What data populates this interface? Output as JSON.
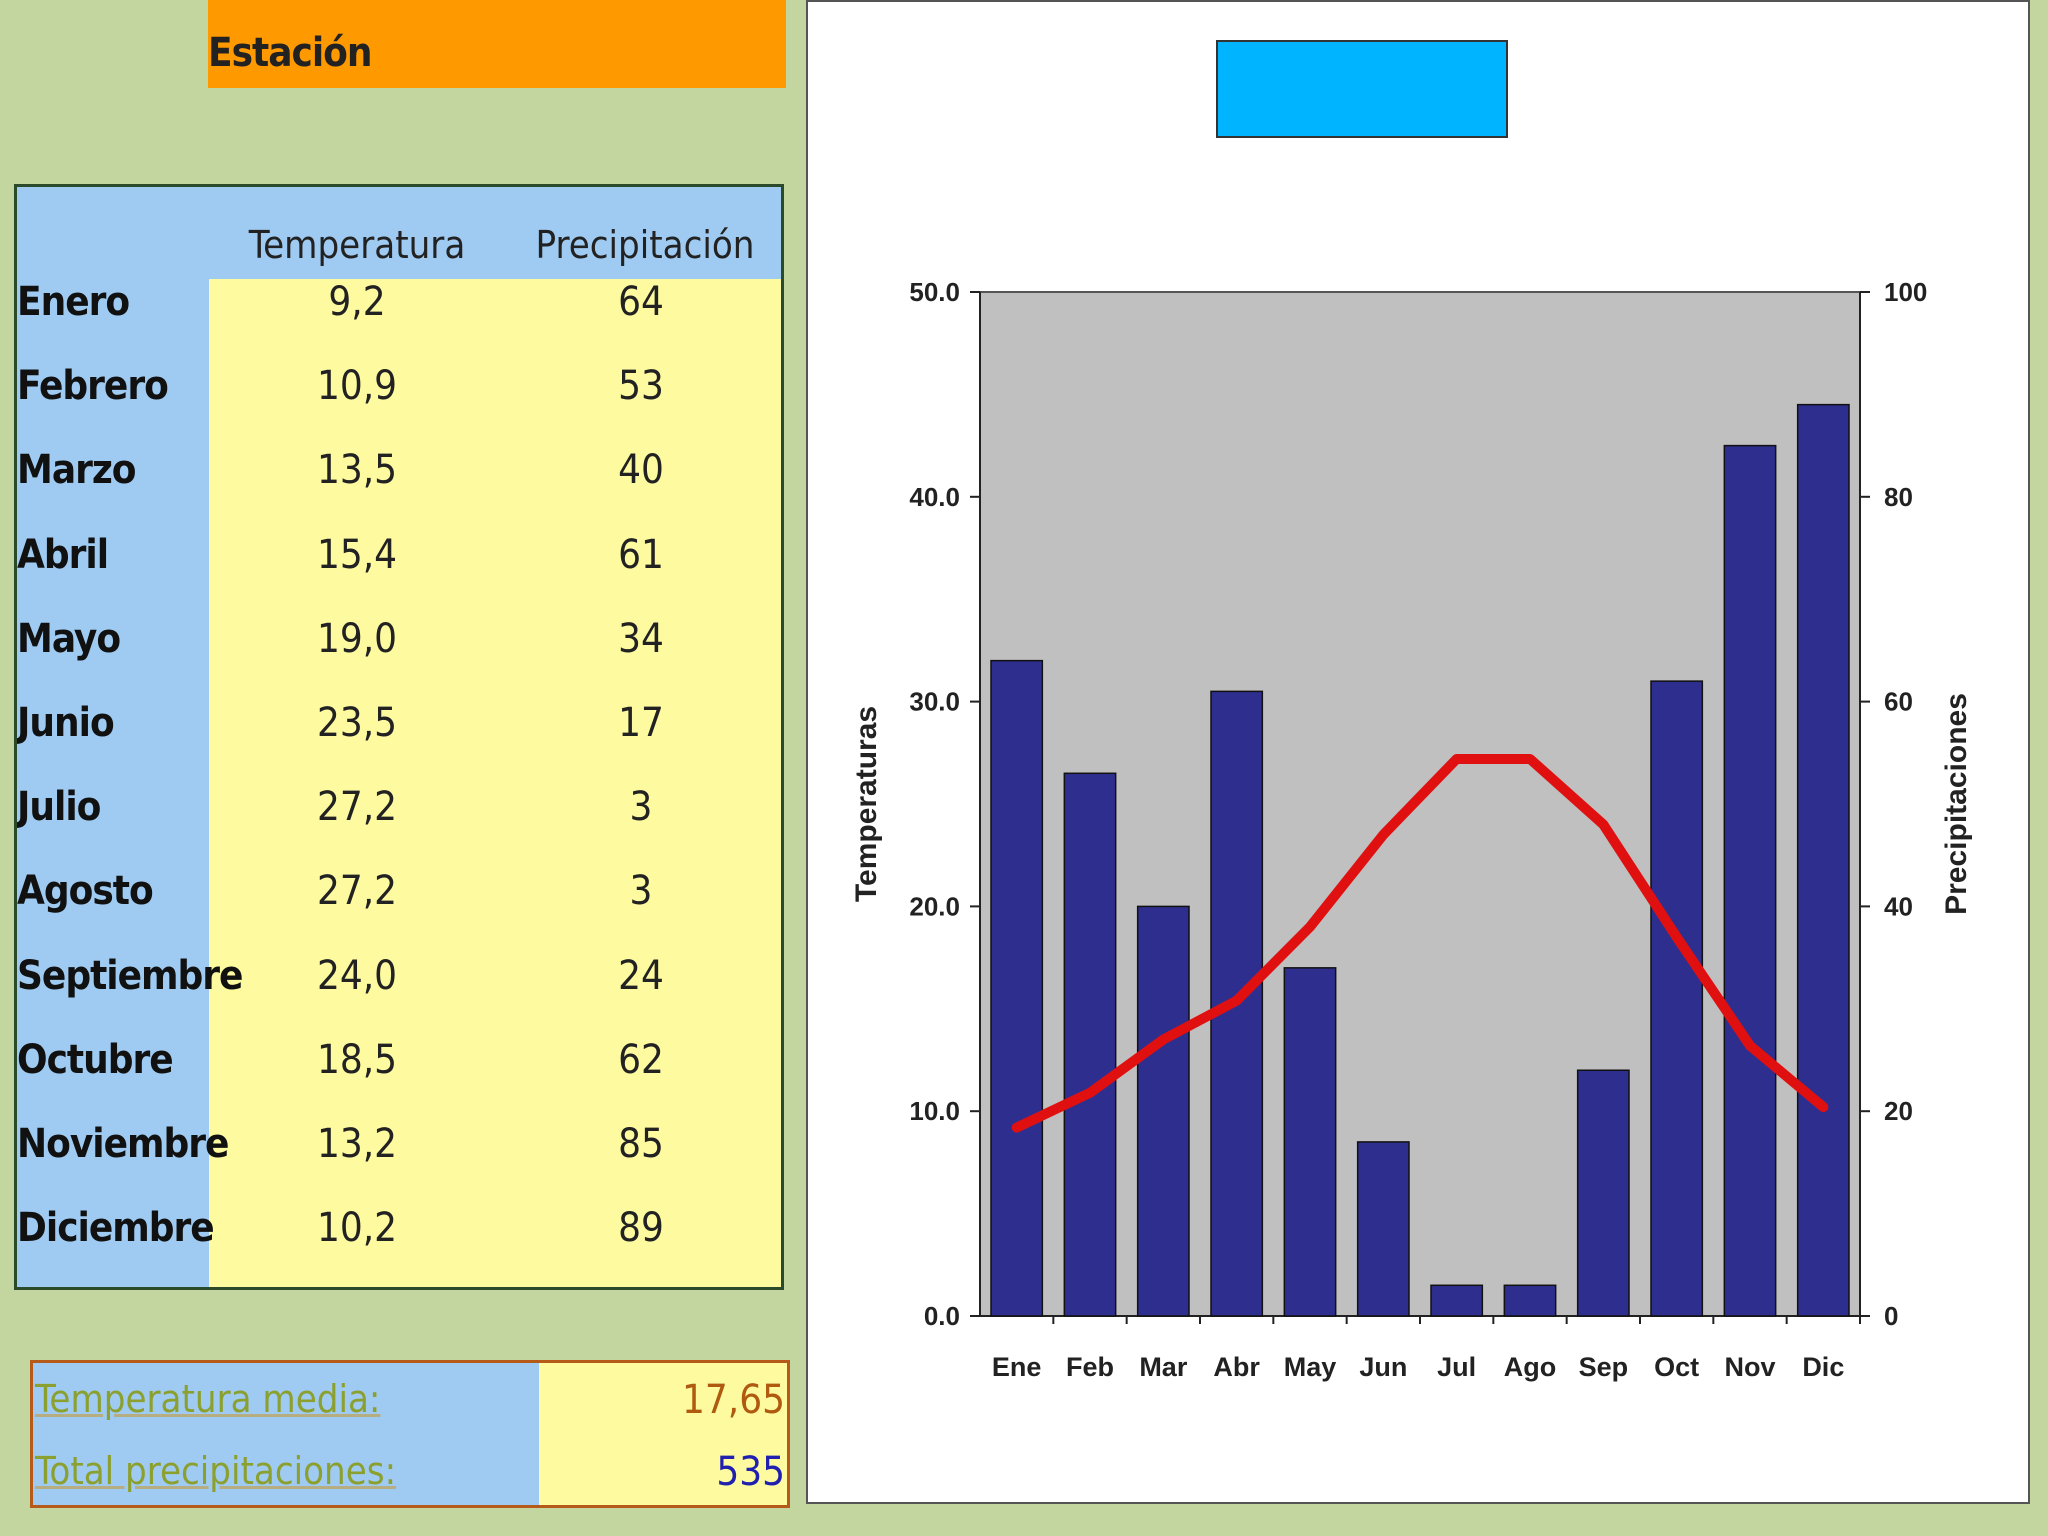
{
  "station": {
    "label": "Estación"
  },
  "table": {
    "headers": {
      "temperature": "Temperatura",
      "precipitation": "Precipitación"
    },
    "rows": [
      {
        "month": "Enero",
        "temp": "9,2",
        "precip": "64"
      },
      {
        "month": "Febrero",
        "temp": "10,9",
        "precip": "53"
      },
      {
        "month": "Marzo",
        "temp": "13,5",
        "precip": "40"
      },
      {
        "month": "Abril",
        "temp": "15,4",
        "precip": "61"
      },
      {
        "month": "Mayo",
        "temp": "19,0",
        "precip": "34"
      },
      {
        "month": "Junio",
        "temp": "23,5",
        "precip": "17"
      },
      {
        "month": "Julio",
        "temp": "27,2",
        "precip": "3"
      },
      {
        "month": "Agosto",
        "temp": "27,2",
        "precip": "3"
      },
      {
        "month": "Septiembre",
        "temp": "24,0",
        "precip": "24"
      },
      {
        "month": "Octubre",
        "temp": "18,5",
        "precip": "62"
      },
      {
        "month": "Noviembre",
        "temp": "13,2",
        "precip": "85"
      },
      {
        "month": "Diciembre",
        "temp": "10,2",
        "precip": "89"
      }
    ]
  },
  "summary": {
    "mean_temp_label": "Temperatura media:",
    "mean_temp_value": "17,65",
    "total_precip_label": "Total precipitaciones:",
    "total_precip_value": "535"
  },
  "colors": {
    "bars": "#2e2e8e",
    "line": "#e01010",
    "plot_bg": "#c0c0c0",
    "title_box": "#00b4ff",
    "station_bar": "#ff9900"
  },
  "chart_data": {
    "type": "bar",
    "categories": [
      "Ene",
      "Feb",
      "Mar",
      "Abr",
      "May",
      "Jun",
      "Jul",
      "Ago",
      "Sep",
      "Oct",
      "Nov",
      "Dic"
    ],
    "series": [
      {
        "type": "bar",
        "axis": "right",
        "values": [
          64,
          53,
          40,
          61,
          34,
          17,
          3,
          3,
          24,
          62,
          85,
          89
        ]
      },
      {
        "type": "line",
        "axis": "left",
        "values": [
          9.2,
          10.9,
          13.5,
          15.4,
          19.0,
          23.5,
          27.2,
          27.2,
          24.0,
          18.5,
          13.2,
          10.2
        ]
      }
    ],
    "ylabel_left": "Temperaturas",
    "ylabel_right": "Precipitaciones",
    "ylim_left": [
      0,
      50
    ],
    "ylim_right": [
      0,
      100
    ],
    "yticks_left": [
      "0.0",
      "10.0",
      "20.0",
      "30.0",
      "40.0",
      "50.0"
    ],
    "yticks_right": [
      "0",
      "20",
      "40",
      "60",
      "80",
      "100"
    ],
    "legend": "none",
    "grid": false
  }
}
